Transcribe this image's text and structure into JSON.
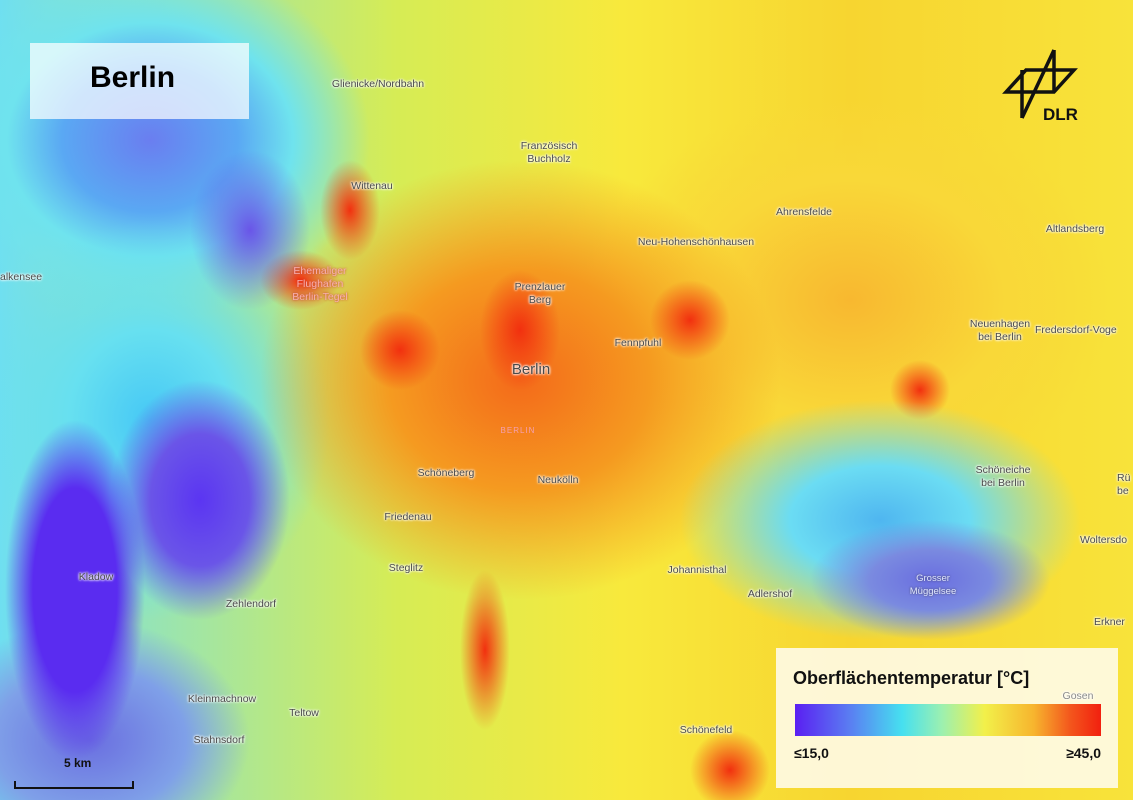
{
  "title": "Berlin",
  "logo": {
    "text": "DLR",
    "icon": "dlr-logo-icon"
  },
  "legend": {
    "title": "Oberflächentemperatur [°C]",
    "min_label": "≤15,0",
    "max_label": "≥45,0",
    "colors": [
      "#5a1ff2",
      "#46e0f0",
      "#f2f04a",
      "#f7b52e",
      "#f2200f"
    ]
  },
  "scale_bar": {
    "label": "5 km"
  },
  "places": {
    "glienicke": "Glienicke/Nordbahn",
    "franzoesisch_1": "Französisch",
    "franzoesisch_2": "Buchholz",
    "wittenau": "Wittenau",
    "tegel_1": "Ehemaliger",
    "tegel_2": "Flughafen",
    "tegel_3": "Berlin-Tegel",
    "falkensee": "alkensee",
    "prenzlauer_1": "Prenzlauer",
    "prenzlauer_2": "Berg",
    "berlin": "Berlin",
    "berlin_district": "BERLIN",
    "ahrensfelde": "Ahrensfelde",
    "neu_hohenschoenhausen": "Neu-Hohenschönhausen",
    "altlandsberg": "Altlandsberg",
    "neuenhagen_1": "Neuenhagen",
    "neuenhagen_2": "bei Berlin",
    "fredersdorf": "Fredersdorf-Voge",
    "fennpfuhl": "Fennpfuhl",
    "schoeneiche_1": "Schöneiche",
    "schoeneiche_2": "bei Berlin",
    "ruedersdorf_1": "Rü",
    "ruedersdorf_2": "be",
    "woltersdorf": "Woltersdo",
    "erkner": "Erkner",
    "mueggelsee_1": "Grosser",
    "mueggelsee_2": "Müggelsee",
    "schoeneberg": "Schöneberg",
    "neukoelln": "Neukölln",
    "friedenau": "Friedenau",
    "steglitz": "Steglitz",
    "johannisthal": "Johannisthal",
    "adlershof": "Adlershof",
    "kladow": "Kladow",
    "zehlendorf": "Zehlendorf",
    "kleinmachnow": "Kleinmachnow",
    "teltow": "Teltow",
    "stahnsdorf": "Stahnsdorf",
    "schoenefeld": "Schönefeld",
    "gosen": "Gosen"
  }
}
